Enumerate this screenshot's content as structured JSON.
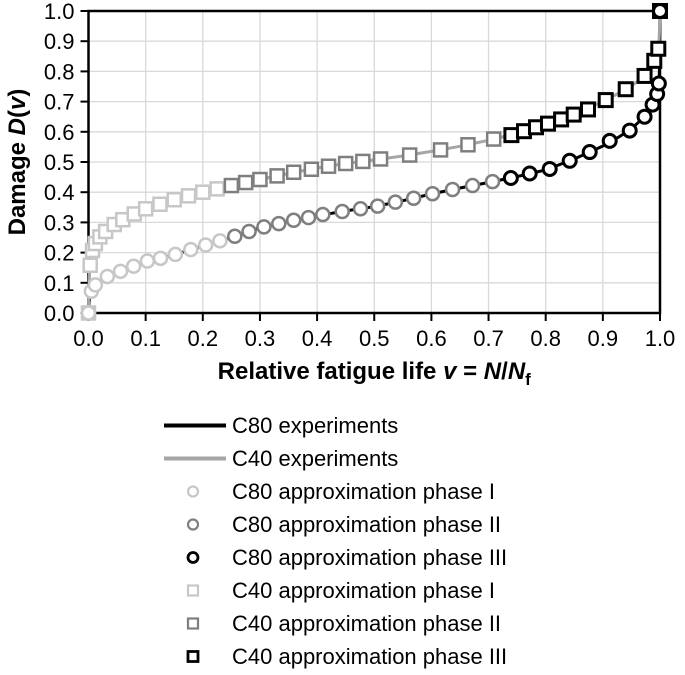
{
  "colors": {
    "background": "#ffffff",
    "axis": "#000000",
    "grid": "#d9d9d9",
    "c80_line": "#000000",
    "c40_line": "#a6a6a6",
    "phase1": "#c7c7c7",
    "phase2": "#7f7f7f",
    "phase3": "#000000"
  },
  "chart_data": {
    "type": "line",
    "title": "",
    "xlabel": "Relative fatigue life v = N/Nf",
    "ylabel": "Damage D(v)",
    "xlabel_segments": [
      {
        "t": "Relative fatigue life ",
        "style": "bold"
      },
      {
        "t": "v",
        "style": "bolditalic"
      },
      {
        "t": " = ",
        "style": "bold"
      },
      {
        "t": "N",
        "style": "bolditalic"
      },
      {
        "t": "/",
        "style": "bold"
      },
      {
        "t": "N",
        "style": "bolditalic"
      },
      {
        "t": "f",
        "style": "boldsub"
      }
    ],
    "ylabel_segments": [
      {
        "t": "Damage ",
        "style": "bold"
      },
      {
        "t": "D",
        "style": "bolditalic"
      },
      {
        "t": "(",
        "style": "bold"
      },
      {
        "t": "v",
        "style": "bolditalic"
      },
      {
        "t": ")",
        "style": "bold"
      }
    ],
    "xlim": [
      0,
      1
    ],
    "ylim": [
      0,
      1
    ],
    "x_tick_labels": [
      "0.0",
      "0.1",
      "0.2",
      "0.3",
      "0.4",
      "0.5",
      "0.6",
      "0.7",
      "0.8",
      "0.9",
      "1.0"
    ],
    "y_tick_labels": [
      "0.0",
      "0.1",
      "0.2",
      "0.3",
      "0.4",
      "0.5",
      "0.6",
      "0.7",
      "0.8",
      "0.9",
      "1.0"
    ],
    "grid": true,
    "legend_position": "below",
    "series": [
      {
        "name": "C80 experiments",
        "type": "line",
        "color": "#000000",
        "line_width": 3,
        "points": [
          [
            0,
            0
          ],
          [
            0.001,
            0.035
          ],
          [
            0.002,
            0.05
          ],
          [
            0.005,
            0.072
          ],
          [
            0.01,
            0.09
          ],
          [
            0.02,
            0.107
          ],
          [
            0.035,
            0.122
          ],
          [
            0.05,
            0.135
          ],
          [
            0.08,
            0.156
          ],
          [
            0.1,
            0.168
          ],
          [
            0.15,
            0.193
          ],
          [
            0.2,
            0.222
          ],
          [
            0.25,
            0.25
          ],
          [
            0.3,
            0.282
          ],
          [
            0.35,
            0.303
          ],
          [
            0.4,
            0.322
          ],
          [
            0.45,
            0.338
          ],
          [
            0.5,
            0.352
          ],
          [
            0.55,
            0.372
          ],
          [
            0.6,
            0.394
          ],
          [
            0.65,
            0.414
          ],
          [
            0.7,
            0.432
          ],
          [
            0.75,
            0.452
          ],
          [
            0.8,
            0.474
          ],
          [
            0.85,
            0.51
          ],
          [
            0.9,
            0.553
          ],
          [
            0.93,
            0.585
          ],
          [
            0.95,
            0.61
          ],
          [
            0.97,
            0.645
          ],
          [
            0.985,
            0.685
          ],
          [
            0.995,
            0.725
          ],
          [
            0.998,
            0.76
          ],
          [
            0.999,
            0.8
          ],
          [
            1,
            1
          ]
        ]
      },
      {
        "name": "C40 experiments",
        "type": "line",
        "color": "#a6a6a6",
        "line_width": 3,
        "points": [
          [
            0,
            0
          ],
          [
            0.001,
            0.09
          ],
          [
            0.002,
            0.14
          ],
          [
            0.005,
            0.195
          ],
          [
            0.01,
            0.225
          ],
          [
            0.02,
            0.252
          ],
          [
            0.035,
            0.278
          ],
          [
            0.05,
            0.3
          ],
          [
            0.08,
            0.328
          ],
          [
            0.1,
            0.345
          ],
          [
            0.15,
            0.375
          ],
          [
            0.2,
            0.4
          ],
          [
            0.25,
            0.422
          ],
          [
            0.3,
            0.442
          ],
          [
            0.35,
            0.462
          ],
          [
            0.4,
            0.48
          ],
          [
            0.45,
            0.495
          ],
          [
            0.5,
            0.507
          ],
          [
            0.55,
            0.52
          ],
          [
            0.6,
            0.535
          ],
          [
            0.65,
            0.552
          ],
          [
            0.7,
            0.572
          ],
          [
            0.75,
            0.595
          ],
          [
            0.8,
            0.625
          ],
          [
            0.85,
            0.658
          ],
          [
            0.9,
            0.7
          ],
          [
            0.93,
            0.73
          ],
          [
            0.95,
            0.752
          ],
          [
            0.97,
            0.78
          ],
          [
            0.985,
            0.815
          ],
          [
            0.995,
            0.855
          ],
          [
            0.998,
            0.89
          ],
          [
            0.999,
            0.93
          ],
          [
            1,
            1
          ]
        ]
      },
      {
        "name": "C80 approximation phase I",
        "type": "scatter",
        "marker": "circle",
        "color": "#c7c7c7",
        "marker_stroke": 2.5,
        "points": [
          [
            0,
            0
          ],
          [
            0.005,
            0.072
          ],
          [
            0.012,
            0.093
          ],
          [
            0.033,
            0.121
          ],
          [
            0.056,
            0.138
          ],
          [
            0.079,
            0.155
          ],
          [
            0.103,
            0.172
          ],
          [
            0.126,
            0.181
          ],
          [
            0.152,
            0.194
          ],
          [
            0.179,
            0.21
          ],
          [
            0.205,
            0.225
          ],
          [
            0.23,
            0.239
          ]
        ]
      },
      {
        "name": "C80 approximation phase II",
        "type": "scatter",
        "marker": "circle",
        "color": "#7f7f7f",
        "marker_stroke": 2.5,
        "points": [
          [
            0.256,
            0.254
          ],
          [
            0.281,
            0.27
          ],
          [
            0.307,
            0.285
          ],
          [
            0.333,
            0.296
          ],
          [
            0.359,
            0.307
          ],
          [
            0.385,
            0.316
          ],
          [
            0.41,
            0.326
          ],
          [
            0.444,
            0.336
          ],
          [
            0.476,
            0.345
          ],
          [
            0.506,
            0.354
          ],
          [
            0.537,
            0.367
          ],
          [
            0.569,
            0.38
          ],
          [
            0.602,
            0.395
          ],
          [
            0.637,
            0.409
          ],
          [
            0.672,
            0.422
          ],
          [
            0.707,
            0.435
          ]
        ]
      },
      {
        "name": "C80 approximation phase III",
        "type": "scatter",
        "marker": "circle",
        "color": "#000000",
        "marker_stroke": 3,
        "points": [
          [
            0.739,
            0.447
          ],
          [
            0.772,
            0.462
          ],
          [
            0.807,
            0.477
          ],
          [
            0.842,
            0.504
          ],
          [
            0.877,
            0.533
          ],
          [
            0.912,
            0.57
          ],
          [
            0.947,
            0.604
          ],
          [
            0.973,
            0.65
          ],
          [
            0.987,
            0.69
          ],
          [
            0.995,
            0.725
          ],
          [
            0.998,
            0.76
          ],
          [
            1,
            1
          ]
        ]
      },
      {
        "name": "C40 approximation phase I",
        "type": "scatter",
        "marker": "square",
        "color": "#c7c7c7",
        "marker_stroke": 2.5,
        "points": [
          [
            0,
            0
          ],
          [
            0.003,
            0.158
          ],
          [
            0.007,
            0.207
          ],
          [
            0.012,
            0.23
          ],
          [
            0.02,
            0.252
          ],
          [
            0.03,
            0.27
          ],
          [
            0.045,
            0.293
          ],
          [
            0.06,
            0.309
          ],
          [
            0.08,
            0.328
          ],
          [
            0.1,
            0.345
          ],
          [
            0.125,
            0.36
          ],
          [
            0.15,
            0.375
          ],
          [
            0.175,
            0.388
          ],
          [
            0.2,
            0.4
          ],
          [
            0.225,
            0.411
          ]
        ]
      },
      {
        "name": "C40 approximation phase II",
        "type": "scatter",
        "marker": "square",
        "color": "#7f7f7f",
        "marker_stroke": 2.5,
        "points": [
          [
            0.25,
            0.422
          ],
          [
            0.275,
            0.432
          ],
          [
            0.3,
            0.442
          ],
          [
            0.33,
            0.454
          ],
          [
            0.359,
            0.466
          ],
          [
            0.39,
            0.476
          ],
          [
            0.42,
            0.486
          ],
          [
            0.45,
            0.495
          ],
          [
            0.48,
            0.502
          ],
          [
            0.511,
            0.51
          ],
          [
            0.562,
            0.523
          ],
          [
            0.616,
            0.54
          ],
          [
            0.664,
            0.557
          ],
          [
            0.709,
            0.576
          ]
        ]
      },
      {
        "name": "C40 approximation phase III",
        "type": "scatter",
        "marker": "square",
        "color": "#000000",
        "marker_stroke": 3,
        "points": [
          [
            0.74,
            0.589
          ],
          [
            0.762,
            0.602
          ],
          [
            0.783,
            0.615
          ],
          [
            0.804,
            0.627
          ],
          [
            0.827,
            0.641
          ],
          [
            0.849,
            0.657
          ],
          [
            0.874,
            0.674
          ],
          [
            0.905,
            0.705
          ],
          [
            0.94,
            0.741
          ],
          [
            0.973,
            0.785
          ],
          [
            0.99,
            0.835
          ],
          [
            0.997,
            0.875
          ],
          [
            1,
            1
          ]
        ]
      }
    ]
  },
  "legend": {
    "entries": [
      {
        "label": "C80 experiments",
        "swatch": "line",
        "color": "#000000"
      },
      {
        "label": "C40 experiments",
        "swatch": "line",
        "color": "#a6a6a6"
      },
      {
        "label": "C80 approximation phase I",
        "swatch": "circle",
        "color": "#c7c7c7"
      },
      {
        "label": "C80 approximation phase II",
        "swatch": "circle",
        "color": "#7f7f7f"
      },
      {
        "label": "C80 approximation phase III",
        "swatch": "circle",
        "color": "#000000"
      },
      {
        "label": "C40 approximation phase I",
        "swatch": "square",
        "color": "#c7c7c7"
      },
      {
        "label": "C40 approximation phase II",
        "swatch": "square",
        "color": "#7f7f7f"
      },
      {
        "label": "C40 approximation phase III",
        "swatch": "square",
        "color": "#000000"
      }
    ]
  }
}
